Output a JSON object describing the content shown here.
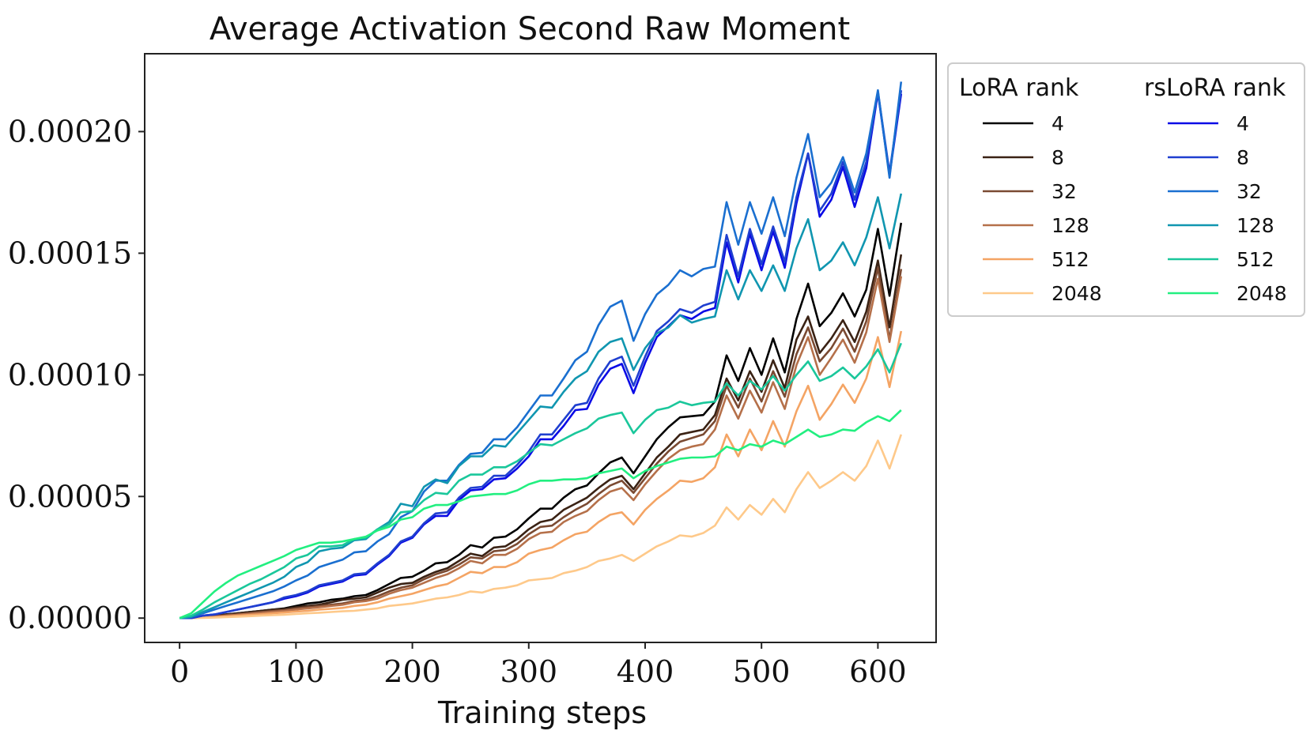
{
  "chart_data": {
    "type": "line",
    "title": "Average Activation Second Raw Moment",
    "xlabel": "Training steps",
    "ylabel": "",
    "xlim": [
      -30,
      650
    ],
    "ylim": [
      -1e-05,
      0.000232
    ],
    "xticks": [
      0,
      100,
      200,
      300,
      400,
      500,
      600
    ],
    "xtick_labels": [
      "0",
      "100",
      "200",
      "300",
      "400",
      "500",
      "600"
    ],
    "yticks": [
      0,
      5e-05,
      0.0001,
      0.00015,
      0.0002
    ],
    "ytick_labels": [
      "0.00000",
      "0.00005",
      "0.00010",
      "0.00015",
      "0.00020"
    ],
    "grid": false,
    "legend_placement": "outside-right-top",
    "legend_groups": [
      {
        "heading": "LoRA rank",
        "entries": [
          "4",
          "8",
          "32",
          "128",
          "512",
          "2048"
        ]
      },
      {
        "heading": "rsLoRA rank",
        "entries": [
          "4",
          "8",
          "32",
          "128",
          "512",
          "2048"
        ]
      }
    ],
    "x": [
      0,
      10,
      20,
      30,
      40,
      50,
      60,
      70,
      80,
      90,
      100,
      110,
      120,
      130,
      140,
      150,
      160,
      170,
      180,
      190,
      200,
      210,
      220,
      230,
      240,
      250,
      260,
      270,
      280,
      290,
      300,
      310,
      320,
      330,
      340,
      350,
      360,
      370,
      380,
      390,
      400,
      410,
      420,
      430,
      440,
      450,
      460,
      470,
      480,
      490,
      500,
      510,
      520,
      530,
      540,
      550,
      560,
      570,
      580,
      590,
      600,
      610,
      620
    ],
    "series": [
      {
        "group": "LoRA rank",
        "name": "4",
        "color": "#000000",
        "values": [
          0,
          0,
          5e-07,
          1e-06,
          1.5e-06,
          2e-06,
          2.5e-06,
          3e-06,
          3.5e-06,
          4e-06,
          5e-06,
          6e-06,
          6.5e-06,
          7.5e-06,
          8e-06,
          9e-06,
          9.5e-06,
          1.15e-05,
          1.4e-05,
          1.65e-05,
          1.7e-05,
          1.95e-05,
          2.25e-05,
          2.3e-05,
          2.6e-05,
          3e-05,
          2.9e-05,
          3.3e-05,
          3.35e-05,
          3.65e-05,
          4.1e-05,
          4.5e-05,
          4.5e-05,
          4.95e-05,
          5.3e-05,
          5.45e-05,
          5.95e-05,
          6.4e-05,
          6.6e-05,
          5.95e-05,
          6.65e-05,
          7.35e-05,
          7.85e-05,
          8.25e-05,
          8.3e-05,
          8.35e-05,
          8.9e-05,
          0.000108,
          9.75e-05,
          0.000111,
          0.0001,
          0.000115,
          0.000101,
          0.000123,
          0.0001375,
          0.00012,
          0.0001255,
          0.0001335,
          0.000124,
          0.000135,
          0.00016,
          0.0001325,
          0.0001625
        ]
      },
      {
        "group": "LoRA rank",
        "name": "8",
        "color": "#3a2214",
        "values": [
          0,
          0,
          5e-07,
          1e-06,
          1.5e-06,
          2e-06,
          2.5e-06,
          3e-06,
          3.5e-06,
          3.7e-06,
          4.5e-06,
          5e-06,
          5.5e-06,
          6.5e-06,
          7.5e-06,
          8e-06,
          8.5e-06,
          1.05e-05,
          1.25e-05,
          1.4e-05,
          1.45e-05,
          1.7e-05,
          1.9e-05,
          2.05e-05,
          2.35e-05,
          2.65e-05,
          2.55e-05,
          2.9e-05,
          2.95e-05,
          3.25e-05,
          3.65e-05,
          3.95e-05,
          4.05e-05,
          4.45e-05,
          4.7e-05,
          4.95e-05,
          5.35e-05,
          5.7e-05,
          5.85e-05,
          5.3e-05,
          5.95e-05,
          6.6e-05,
          7.05e-05,
          7.55e-05,
          7.65e-05,
          7.75e-05,
          8.35e-05,
          9.85e-05,
          8.95e-05,
          0.0001015,
          9.3e-05,
          0.000106,
          9.45e-05,
          0.0001145,
          0.000124,
          0.000109,
          0.000115,
          0.0001225,
          0.0001135,
          0.000126,
          0.000147,
          0.0001195,
          0.0001495
        ]
      },
      {
        "group": "LoRA rank",
        "name": "32",
        "color": "#7a4a32",
        "values": [
          0,
          0,
          4e-07,
          8e-07,
          1.2e-06,
          1.6e-06,
          2e-06,
          2.5e-06,
          3e-06,
          3.3e-06,
          4e-06,
          4.5e-06,
          5e-06,
          5.5e-06,
          6e-06,
          7e-06,
          7.5e-06,
          9e-06,
          1.1e-05,
          1.25e-05,
          1.35e-05,
          1.6e-05,
          1.8e-05,
          1.95e-05,
          2.2e-05,
          2.5e-05,
          2.45e-05,
          2.75e-05,
          2.8e-05,
          3.05e-05,
          3.45e-05,
          3.75e-05,
          3.8e-05,
          4.15e-05,
          4.45e-05,
          4.7e-05,
          5.1e-05,
          5.45e-05,
          5.65e-05,
          5.15e-05,
          5.75e-05,
          6.35e-05,
          6.85e-05,
          7.25e-05,
          7.4e-05,
          7.55e-05,
          8.1e-05,
          9.55e-05,
          8.65e-05,
          9.85e-05,
          8.9e-05,
          0.0001015,
          9.1e-05,
          0.0001085,
          0.0001195,
          0.0001055,
          0.000111,
          0.000119,
          0.0001095,
          0.000122,
          0.000144,
          0.0001145,
          0.0001435
        ]
      },
      {
        "group": "LoRA rank",
        "name": "128",
        "color": "#b5704a",
        "values": [
          0,
          0,
          3e-07,
          6e-07,
          1e-06,
          1.4e-06,
          1.8e-06,
          2.2e-06,
          2.6e-06,
          3e-06,
          3.5e-06,
          4e-06,
          4.5e-06,
          5e-06,
          5.5e-06,
          6.5e-06,
          7e-06,
          8e-06,
          1e-05,
          1.15e-05,
          1.25e-05,
          1.45e-05,
          1.65e-05,
          1.8e-05,
          2.05e-05,
          2.35e-05,
          2.25e-05,
          2.6e-05,
          2.6e-05,
          2.85e-05,
          3.25e-05,
          3.5e-05,
          3.55e-05,
          3.95e-05,
          4.2e-05,
          4.4e-05,
          4.85e-05,
          5.2e-05,
          5.35e-05,
          4.85e-05,
          5.5e-05,
          6.05e-05,
          6.55e-05,
          6.9e-05,
          7.05e-05,
          7.15e-05,
          7.75e-05,
          9.15e-05,
          8.2e-05,
          9.35e-05,
          8.45e-05,
          9.7e-05,
          8.6e-05,
          0.000104,
          0.0001155,
          0.0001,
          0.000107,
          0.0001145,
          0.000105,
          0.0001175,
          0.0001395,
          0.0001135,
          0.0001405
        ]
      },
      {
        "group": "LoRA rank",
        "name": "512",
        "color": "#f4a464",
        "values": [
          0,
          0,
          2e-07,
          4e-07,
          7e-07,
          1e-06,
          1.3e-06,
          1.6e-06,
          2e-06,
          2.3e-06,
          2.7e-06,
          3e-06,
          3.5e-06,
          3.8e-06,
          4.2e-06,
          5e-06,
          5.5e-06,
          6.5e-06,
          8e-06,
          9e-06,
          1e-05,
          1.15e-05,
          1.3e-05,
          1.4e-05,
          1.65e-05,
          1.9e-05,
          1.85e-05,
          2.1e-05,
          2.1e-05,
          2.3e-05,
          2.65e-05,
          2.8e-05,
          2.9e-05,
          3.2e-05,
          3.45e-05,
          3.55e-05,
          3.95e-05,
          4.25e-05,
          4.35e-05,
          3.85e-05,
          4.45e-05,
          4.9e-05,
          5.25e-05,
          5.65e-05,
          5.6e-05,
          5.75e-05,
          6.2e-05,
          7.55e-05,
          6.65e-05,
          7.75e-05,
          6.9e-05,
          8.1e-05,
          7.05e-05,
          8.5e-05,
          9.55e-05,
          8.15e-05,
          8.8e-05,
          9.6e-05,
          8.85e-05,
          9.85e-05,
          0.0001155,
          9.5e-05,
          0.000118
        ]
      },
      {
        "group": "LoRA rank",
        "name": "2048",
        "color": "#fec98a",
        "values": [
          0,
          0,
          1e-07,
          2e-07,
          4e-07,
          6e-07,
          8e-07,
          1e-06,
          1.2e-06,
          1.4e-06,
          1.7e-06,
          2e-06,
          2.2e-06,
          2.5e-06,
          2.8e-06,
          3e-06,
          3.5e-06,
          4e-06,
          5e-06,
          5.5e-06,
          6e-06,
          7e-06,
          8e-06,
          8.5e-06,
          9.5e-06,
          1.1e-05,
          1.05e-05,
          1.2e-05,
          1.25e-05,
          1.35e-05,
          1.55e-05,
          1.6e-05,
          1.65e-05,
          1.85e-05,
          1.95e-05,
          2.1e-05,
          2.35e-05,
          2.45e-05,
          2.6e-05,
          2.35e-05,
          2.65e-05,
          2.95e-05,
          3.15e-05,
          3.4e-05,
          3.35e-05,
          3.5e-05,
          3.8e-05,
          4.55e-05,
          4.05e-05,
          4.65e-05,
          4.25e-05,
          4.9e-05,
          4.35e-05,
          5.3e-05,
          6e-05,
          5.35e-05,
          5.65e-05,
          6e-05,
          5.65e-05,
          6.25e-05,
          7.3e-05,
          6.15e-05,
          7.55e-05
        ]
      },
      {
        "group": "rsLoRA rank",
        "name": "4",
        "color": "#0a0ae6",
        "values": [
          0,
          0,
          1e-06,
          1.5e-06,
          2.5e-06,
          3.5e-06,
          4.5e-06,
          5.5e-06,
          6.5e-06,
          8e-06,
          9e-06,
          1.05e-05,
          1.3e-05,
          1.4e-05,
          1.5e-05,
          1.75e-05,
          1.8e-05,
          2.2e-05,
          2.55e-05,
          3.1e-05,
          3.3e-05,
          3.85e-05,
          4.2e-05,
          4.2e-05,
          4.85e-05,
          5.25e-05,
          5.3e-05,
          5.7e-05,
          5.75e-05,
          6.15e-05,
          6.65e-05,
          7.35e-05,
          7.35e-05,
          7.9e-05,
          8.55e-05,
          8.6e-05,
          9.6e-05,
          0.0001025,
          0.0001045,
          9.25e-05,
          0.000105,
          0.0001155,
          0.00012,
          0.0001245,
          0.000123,
          0.000126,
          0.0001275,
          0.0001545,
          0.000138,
          0.000158,
          0.000143,
          0.000159,
          0.000144,
          0.0001705,
          0.000191,
          0.000165,
          0.000172,
          0.0001855,
          0.000169,
          0.000185,
          0.000216,
          0.000182,
          0.0002155
        ]
      },
      {
        "group": "rsLoRA rank",
        "name": "8",
        "color": "#1f3fd0",
        "values": [
          0,
          0,
          1e-06,
          1.5e-06,
          2.5e-06,
          3.5e-06,
          4.5e-06,
          5.5e-06,
          6.5e-06,
          8.5e-06,
          9.5e-06,
          1.1e-05,
          1.35e-05,
          1.45e-05,
          1.55e-05,
          1.8e-05,
          1.85e-05,
          2.25e-05,
          2.6e-05,
          3.15e-05,
          3.35e-05,
          3.9e-05,
          4.3e-05,
          4.35e-05,
          4.95e-05,
          5.35e-05,
          5.4e-05,
          5.85e-05,
          5.85e-05,
          6.3e-05,
          6.85e-05,
          7.55e-05,
          7.55e-05,
          8.15e-05,
          8.75e-05,
          8.85e-05,
          9.85e-05,
          0.0001055,
          0.0001075,
          9.55e-05,
          0.0001075,
          0.000118,
          0.000122,
          0.000127,
          0.0001255,
          0.0001285,
          0.00013,
          0.0001575,
          0.0001405,
          0.00016,
          0.0001455,
          0.000161,
          0.0001465,
          0.000173,
          0.000191,
          0.0001675,
          0.0001745,
          0.0001875,
          0.000172,
          0.0001875,
          0.0002165,
          0.000183,
          0.000217
        ]
      },
      {
        "group": "rsLoRA rank",
        "name": "32",
        "color": "#1a6fd0",
        "values": [
          0,
          5e-07,
          2e-06,
          3.5e-06,
          5e-06,
          6.5e-06,
          8e-06,
          9.5e-06,
          1.1e-05,
          1.3e-05,
          1.55e-05,
          1.75e-05,
          2.1e-05,
          2.25e-05,
          2.4e-05,
          2.7e-05,
          2.75e-05,
          3.15e-05,
          3.45e-05,
          4.15e-05,
          4.4e-05,
          5.2e-05,
          5.65e-05,
          5.65e-05,
          6.3e-05,
          6.75e-05,
          6.8e-05,
          7.35e-05,
          7.35e-05,
          7.85e-05,
          8.5e-05,
          9.15e-05,
          9.15e-05,
          9.85e-05,
          0.000106,
          0.0001095,
          0.0001205,
          0.000128,
          0.0001305,
          0.000114,
          0.000125,
          0.000133,
          0.000137,
          0.000143,
          0.0001405,
          0.0001435,
          0.0001445,
          0.000171,
          0.0001535,
          0.000171,
          0.000158,
          0.000173,
          0.000157,
          0.000181,
          0.000199,
          0.000173,
          0.000179,
          0.0001895,
          0.000175,
          0.000191,
          0.000217,
          0.000181,
          0.0002205
        ]
      },
      {
        "group": "rsLoRA rank",
        "name": "128",
        "color": "#1096b0",
        "values": [
          0,
          5e-07,
          2.5e-06,
          4.5e-06,
          6.5e-06,
          8.5e-06,
          1.05e-05,
          1.25e-05,
          1.45e-05,
          1.7e-05,
          2.1e-05,
          2.3e-05,
          2.75e-05,
          2.85e-05,
          2.9e-05,
          3.2e-05,
          3.25e-05,
          3.65e-05,
          3.95e-05,
          4.7e-05,
          4.6e-05,
          5.4e-05,
          5.7e-05,
          5.55e-05,
          6.25e-05,
          6.65e-05,
          6.65e-05,
          7.1e-05,
          7.05e-05,
          7.6e-05,
          8.15e-05,
          8.7e-05,
          8.65e-05,
          9.3e-05,
          9.85e-05,
          0.0001015,
          0.0001095,
          0.0001135,
          0.000115,
          0.000102,
          0.000111,
          0.000117,
          0.0001195,
          0.0001245,
          0.0001215,
          0.000123,
          0.000124,
          0.000143,
          0.000131,
          0.000143,
          0.0001345,
          0.000145,
          0.0001345,
          0.000152,
          0.000164,
          0.000143,
          0.000147,
          0.0001545,
          0.000145,
          0.0001565,
          0.000173,
          0.000152,
          0.0001745
        ]
      },
      {
        "group": "rsLoRA rank",
        "name": "512",
        "color": "#1ac79b",
        "values": [
          0,
          1e-06,
          3.5e-06,
          6.5e-06,
          9e-06,
          1.15e-05,
          1.4e-05,
          1.6e-05,
          1.85e-05,
          2.1e-05,
          2.45e-05,
          2.6e-05,
          2.95e-05,
          2.95e-05,
          3e-05,
          3.25e-05,
          3.3e-05,
          3.65e-05,
          3.85e-05,
          4.35e-05,
          4.4e-05,
          4.85e-05,
          5.15e-05,
          5.1e-05,
          5.65e-05,
          5.9e-05,
          5.9e-05,
          6.2e-05,
          6.2e-05,
          6.45e-05,
          6.8e-05,
          7.15e-05,
          7.1e-05,
          7.35e-05,
          7.6e-05,
          7.8e-05,
          8.2e-05,
          8.35e-05,
          8.45e-05,
          7.6e-05,
          8.15e-05,
          8.55e-05,
          8.65e-05,
          8.9e-05,
          8.75e-05,
          8.85e-05,
          8.9e-05,
          9.65e-05,
          9.15e-05,
          9.75e-05,
          9.4e-05,
          9.95e-05,
          9.35e-05,
          0.0001,
          0.0001055,
          9.75e-05,
          9.95e-05,
          0.000103,
          9.85e-05,
          0.0001035,
          0.0001105,
          0.000101,
          0.000113
        ]
      },
      {
        "group": "rsLoRA rank",
        "name": "2048",
        "color": "#22ef80",
        "values": [
          0,
          2e-06,
          6.5e-06,
          1.1e-05,
          1.45e-05,
          1.75e-05,
          1.95e-05,
          2.15e-05,
          2.35e-05,
          2.55e-05,
          2.8e-05,
          2.95e-05,
          3.1e-05,
          3.1e-05,
          3.15e-05,
          3.25e-05,
          3.35e-05,
          3.6e-05,
          3.75e-05,
          4.05e-05,
          4.15e-05,
          4.5e-05,
          4.65e-05,
          4.65e-05,
          4.8e-05,
          5e-05,
          5.05e-05,
          5.1e-05,
          5.1e-05,
          5.25e-05,
          5.5e-05,
          5.65e-05,
          5.65e-05,
          5.7e-05,
          5.7e-05,
          5.75e-05,
          5.95e-05,
          6.05e-05,
          6.15e-05,
          5.75e-05,
          6.05e-05,
          6.25e-05,
          6.4e-05,
          6.55e-05,
          6.6e-05,
          6.6e-05,
          6.65e-05,
          7.05e-05,
          6.9e-05,
          7.15e-05,
          7.05e-05,
          7.3e-05,
          7.15e-05,
          7.45e-05,
          7.75e-05,
          7.45e-05,
          7.55e-05,
          7.75e-05,
          7.7e-05,
          8.05e-05,
          8.3e-05,
          8.1e-05,
          8.55e-05
        ]
      }
    ]
  }
}
